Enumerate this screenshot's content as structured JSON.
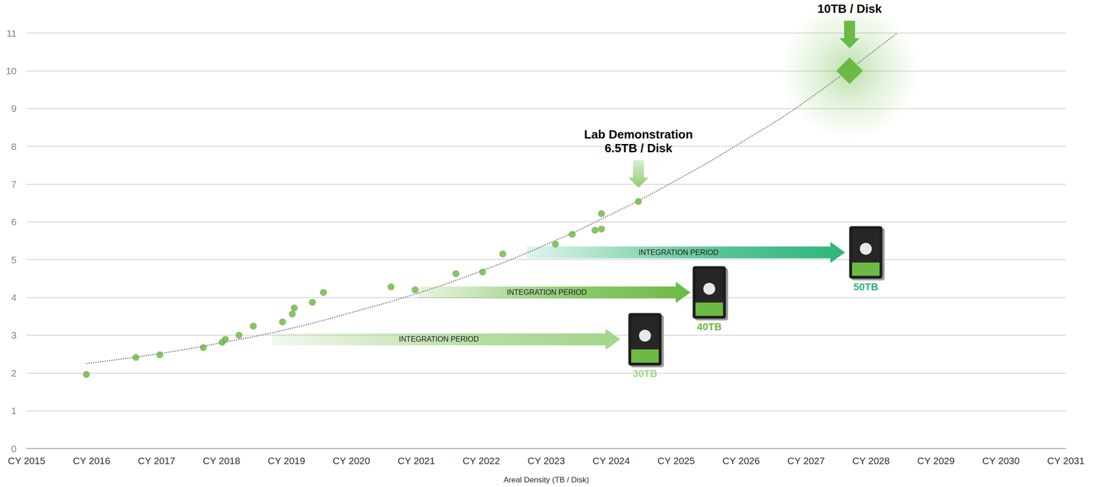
{
  "chart_data": {
    "type": "scatter",
    "x_label": "Areal Density (TB / Disk)",
    "xlim": [
      2015,
      2031
    ],
    "xticks": [
      {
        "value": 2015,
        "label": "CY 2015"
      },
      {
        "value": 2016,
        "label": "CY 2016"
      },
      {
        "value": 2017,
        "label": "CY 2017"
      },
      {
        "value": 2018,
        "label": "CY 2018"
      },
      {
        "value": 2019,
        "label": "CY 2019"
      },
      {
        "value": 2020,
        "label": "CY 2020"
      },
      {
        "value": 2021,
        "label": "CY 2021"
      },
      {
        "value": 2022,
        "label": "CY 2022"
      },
      {
        "value": 2023,
        "label": "CY 2023"
      },
      {
        "value": 2024,
        "label": "CY 2024"
      },
      {
        "value": 2025,
        "label": "CY 2025"
      },
      {
        "value": 2026,
        "label": "CY 2026"
      },
      {
        "value": 2027,
        "label": "CY 2027"
      },
      {
        "value": 2028,
        "label": "CY 2028"
      },
      {
        "value": 2029,
        "label": "CY 2029"
      },
      {
        "value": 2030,
        "label": "CY 2030"
      },
      {
        "value": 2031,
        "label": "CY 2031"
      }
    ],
    "ylim": [
      0,
      11
    ],
    "yticks": [
      0,
      1,
      2,
      3,
      4,
      5,
      6,
      7,
      8,
      9,
      10,
      11
    ],
    "grid": true,
    "series": [
      {
        "type": "scatter",
        "color": "#6db33f",
        "marker": "circle",
        "x": [
          2015.92,
          2016.68,
          2017.05,
          2017.72,
          2018.01,
          2018.06,
          2018.27,
          2018.49,
          2018.94,
          2019.09,
          2019.12,
          2019.4,
          2019.57,
          2020.61,
          2020.98,
          2021.61,
          2022.02,
          2022.33,
          2023.14,
          2023.4,
          2023.75,
          2023.85,
          2023.85,
          2024.42
        ],
        "values": [
          1.96,
          2.41,
          2.48,
          2.67,
          2.81,
          2.89,
          3.0,
          3.24,
          3.35,
          3.56,
          3.72,
          3.87,
          4.13,
          4.28,
          4.2,
          4.63,
          4.67,
          5.15,
          5.41,
          5.67,
          5.78,
          5.81,
          6.22,
          6.54
        ]
      },
      {
        "type": "line",
        "color": "#808080",
        "line_style": "dotted",
        "x": [
          2015.92,
          2017,
          2018,
          2019,
          2020,
          2021,
          2022,
          2023,
          2024,
          2025,
          2026,
          2027,
          2028.4
        ],
        "values": [
          2.25,
          2.5,
          2.8,
          3.15,
          3.6,
          4.1,
          4.7,
          5.4,
          6.2,
          7.1,
          8.1,
          9.2,
          11
        ]
      }
    ],
    "annotations": [
      {
        "text": [
          "10TB / Disk"
        ],
        "x": 2027.67,
        "y": 10,
        "marker": "diamond",
        "color": "#6cba45"
      },
      {
        "text": [
          "Lab Demonstration",
          "6.5TB / Disk"
        ],
        "x": 2024.42,
        "y": 6.54,
        "color": "#8fcc70"
      }
    ],
    "periods": [
      {
        "label": "INTEGRATION PERIOD",
        "start": 2018.78,
        "end": 2024.14,
        "y": 2.89,
        "color": "#a3d58a",
        "drive": {
          "label": "30TB",
          "x": 2024.52
        }
      },
      {
        "label": "INTEGRATION PERIOD",
        "start": 2021.02,
        "end": 2025.22,
        "y": 4.13,
        "color": "#6cba45",
        "drive": {
          "label": "40TB",
          "x": 2025.51
        }
      },
      {
        "label": "INTEGRATION PERIOD",
        "start": 2022.7,
        "end": 2027.6,
        "y": 5.19,
        "color": "#2eb67a",
        "drive": {
          "label": "50TB",
          "x": 2027.92
        }
      }
    ]
  }
}
